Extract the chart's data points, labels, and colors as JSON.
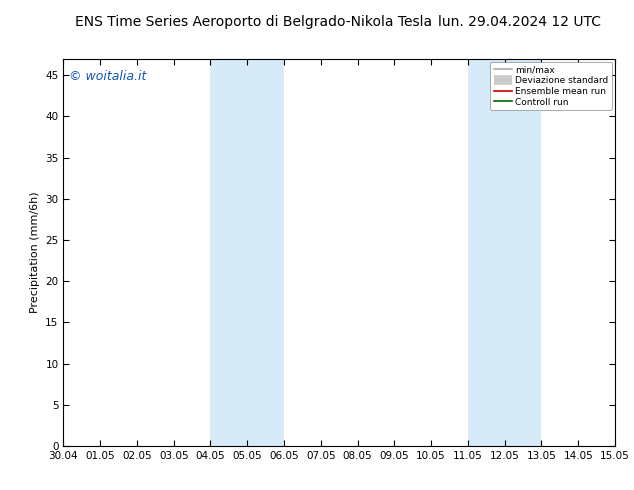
{
  "title_left": "ENS Time Series Aeroporto di Belgrado-Nikola Tesla",
  "title_right": "lun. 29.04.2024 12 UTC",
  "ylabel": "Precipitation (mm/6h)",
  "watermark": "© woitalia.it",
  "background_color": "#ffffff",
  "plot_bg_color": "#ffffff",
  "ylim": [
    0,
    47
  ],
  "yticks": [
    0,
    5,
    10,
    15,
    20,
    25,
    30,
    35,
    40,
    45
  ],
  "x_start": "2024-04-30",
  "x_end": "2024-05-15",
  "xtick_labels": [
    "30.04",
    "01.05",
    "02.05",
    "03.05",
    "04.05",
    "05.05",
    "06.05",
    "07.05",
    "08.05",
    "09.05",
    "10.05",
    "11.05",
    "12.05",
    "13.05",
    "14.05",
    "15.05"
  ],
  "shaded_regions": [
    {
      "start": "2024-05-04",
      "end": "2024-05-06",
      "color": "#d6eaf8"
    },
    {
      "start": "2024-05-11",
      "end": "2024-05-13",
      "color": "#d6eaf8"
    }
  ],
  "legend_items": [
    {
      "label": "min/max",
      "color": "#aaaaaa",
      "lw": 1.2
    },
    {
      "label": "Deviazione standard",
      "color": "#cccccc",
      "lw": 7
    },
    {
      "label": "Ensemble mean run",
      "color": "#cc0000",
      "lw": 1.2
    },
    {
      "label": "Controll run",
      "color": "#006600",
      "lw": 1.2
    }
  ],
  "title_fontsize": 10,
  "axis_label_fontsize": 8,
  "tick_fontsize": 7.5,
  "watermark_color": "#1155bb",
  "watermark_fontsize": 9,
  "figsize": [
    6.34,
    4.9
  ],
  "dpi": 100
}
